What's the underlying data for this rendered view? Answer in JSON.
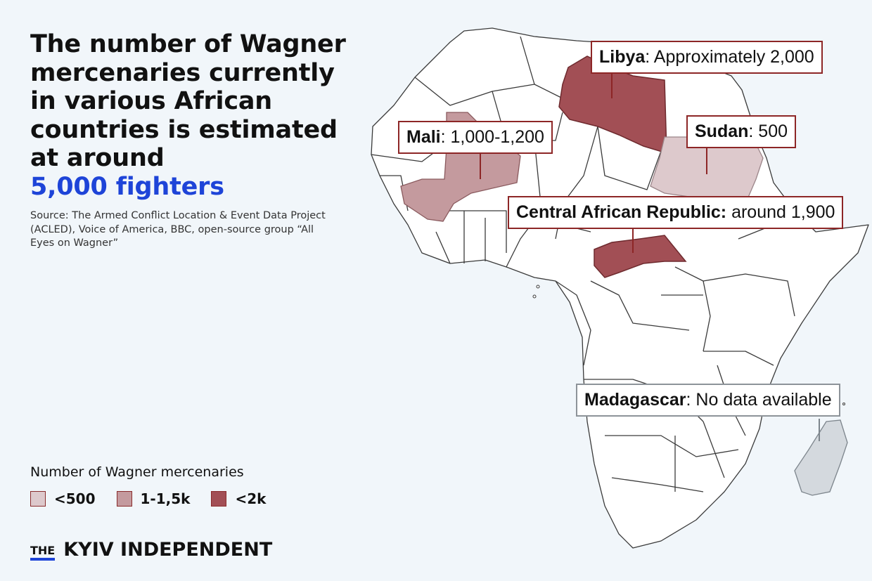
{
  "title": {
    "line1": "The number of Wagner mercenaries currently in various African countries is estimated at around",
    "highlight": "5,000 fighters"
  },
  "source": "Source: The Armed Conflict Location & Event Data Project (ACLED), Voice of America, BBC, open-source group “All Eyes on Wagner”",
  "legend": {
    "title": "Number of Wagner mercenaries",
    "items": [
      {
        "label": "<500",
        "color": "#ddc9cc"
      },
      {
        "label": "1-1,5k",
        "color": "#c49a9e"
      },
      {
        "label": "<2k",
        "color": "#a24f55"
      }
    ]
  },
  "callouts": {
    "libya": {
      "name": "Libya",
      "value": ": Approximately 2,000"
    },
    "mali": {
      "name": "Mali",
      "value": ": 1,000-1,200"
    },
    "sudan": {
      "name": "Sudan",
      "value": ": 500"
    },
    "car": {
      "name": "Central African Republic:",
      "value": " around 1,900"
    },
    "madagascar": {
      "name": "Madagascar",
      "value": ": No data available"
    }
  },
  "colors": {
    "accent": "#1e44d8",
    "high": "#a24f55",
    "mid": "#c49a9e",
    "low": "#ddc9cc",
    "nodata": "#d4d9de"
  },
  "brand": {
    "the": "THE",
    "name": "KYIV INDEPENDENT"
  }
}
